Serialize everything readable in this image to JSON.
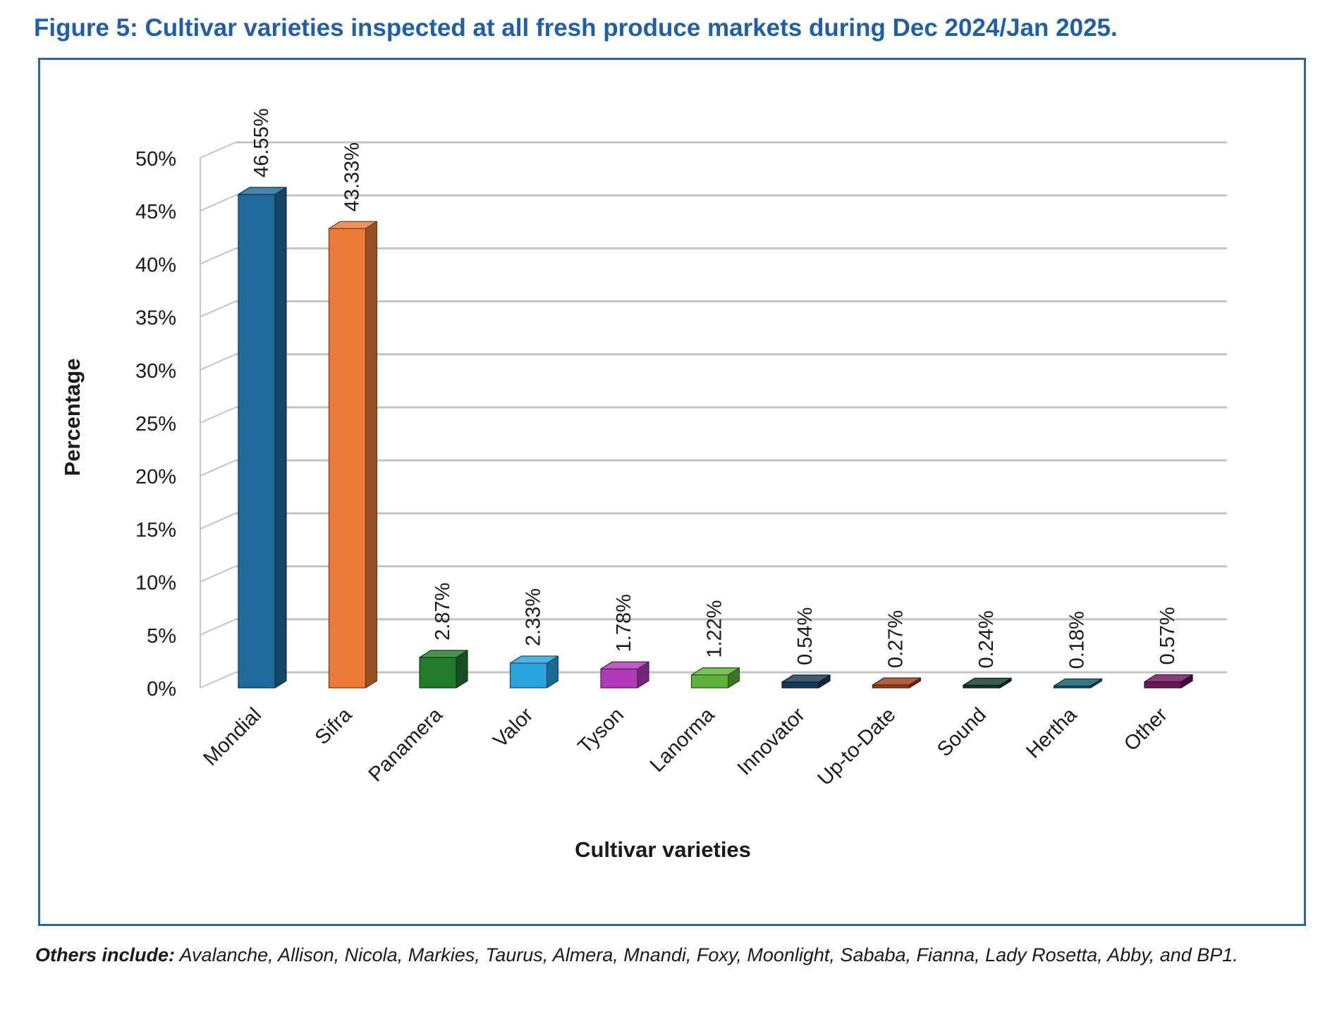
{
  "figure_title": "Figure 5: Cultivar varieties inspected at all fresh produce markets during Dec 2024/Jan 2025.",
  "footnote": {
    "label": "Others include:",
    "text": " Avalanche, Allison, Nicola, Markies, Taurus, Almera, Mnandi, Foxy, Moonlight, Sababa, Fianna, Lady Rosetta, Abby, and BP1."
  },
  "chart_data": {
    "type": "bar",
    "style": "3d-column",
    "title": "",
    "xlabel": "Cultivar varieties",
    "ylabel": "Percentage",
    "ylim": [
      0,
      50
    ],
    "yticks": [
      "0%",
      "5%",
      "10%",
      "15%",
      "20%",
      "25%",
      "30%",
      "35%",
      "40%",
      "45%",
      "50%"
    ],
    "grid": true,
    "categories": [
      "Mondial",
      "Sifra",
      "Panamera",
      "Valor",
      "Tyson",
      "Lanorma",
      "Innovator",
      "Up-to-Date",
      "Sound",
      "Hertha",
      "Other"
    ],
    "values": [
      46.55,
      43.33,
      2.87,
      2.33,
      1.78,
      1.22,
      0.54,
      0.27,
      0.24,
      0.18,
      0.57
    ],
    "data_labels": [
      "46.55%",
      "43.33%",
      "2.87%",
      "2.33%",
      "1.78%",
      "1.22%",
      "0.54%",
      "0.27%",
      "0.24%",
      "0.18%",
      "0.57%"
    ],
    "colors": [
      "#1f6a9a",
      "#ea7a35",
      "#227a2c",
      "#2aa3df",
      "#b03ab8",
      "#5fb23a",
      "#143a57",
      "#9b3e17",
      "#0f3b2e",
      "#0d5a6d",
      "#6a1658"
    ]
  }
}
